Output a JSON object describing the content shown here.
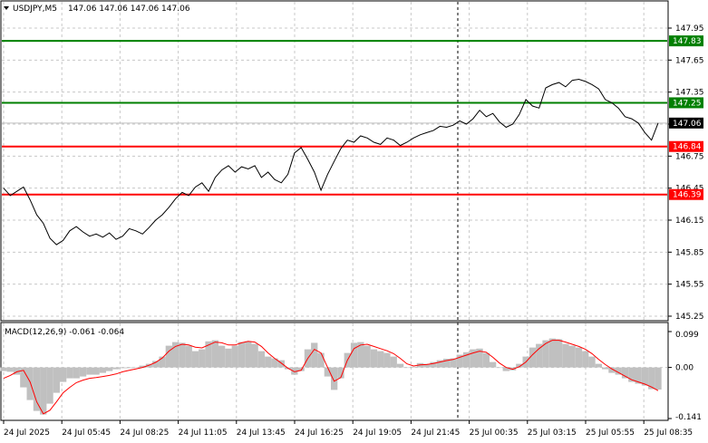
{
  "header": {
    "symbol": "USDJPY,M5",
    "ohlc": "147.06 147.06 147.06 147.06",
    "menu_icon": "triangle-down-icon"
  },
  "macd": {
    "label": "MACD(12,26,9) -0.061 -0.064",
    "ylim": [
      -0.141,
      0.099
    ],
    "ticks": [
      "0.099",
      "0.00",
      "-0.141"
    ],
    "histogram_color": "#c0c0c0",
    "signal_color": "#ff0000"
  },
  "price_axis": {
    "ylim": [
      145.25,
      147.95
    ],
    "ticks": [
      "147.95",
      "147.65",
      "147.35",
      "147.05",
      "146.75",
      "146.45",
      "146.15",
      "145.85",
      "145.55",
      "145.25"
    ]
  },
  "time_axis": {
    "labels": [
      "24 Jul 2025",
      "24 Jul 05:45",
      "24 Jul 08:25",
      "24 Jul 11:05",
      "24 Jul 13:45",
      "24 Jul 16:25",
      "24 Jul 19:05",
      "24 Jul 21:45",
      "25 Jul 00:35",
      "25 Jul 03:15",
      "25 Jul 05:55",
      "25 Jul 08:35"
    ]
  },
  "levels": [
    {
      "name": "resistance-1",
      "value": 147.83,
      "label": "147.83",
      "color": "#008000"
    },
    {
      "name": "resistance-2",
      "value": 147.25,
      "label": "147.25",
      "color": "#008000"
    },
    {
      "name": "support-1",
      "value": 146.84,
      "label": "146.84",
      "color": "#ff0000"
    },
    {
      "name": "support-2",
      "value": 146.39,
      "label": "146.39",
      "color": "#ff0000"
    }
  ],
  "current_price": {
    "value": 147.06,
    "label": "147.06",
    "color": "#000000"
  },
  "chart_data": [
    {
      "type": "line",
      "title": "USDJPY,M5",
      "ylim": [
        145.25,
        147.95
      ],
      "series": [
        {
          "values": [
            146.45,
            146.38,
            146.42,
            146.46,
            146.34,
            146.2,
            146.12,
            145.98,
            145.92,
            145.96,
            146.05,
            146.09,
            146.04,
            146.0,
            146.02,
            145.99,
            146.03,
            145.97,
            146.0,
            146.07,
            146.05,
            146.02,
            146.08,
            146.15,
            146.2,
            146.27,
            146.35,
            146.41,
            146.38,
            146.46,
            146.5,
            146.42,
            146.55,
            146.62,
            146.66,
            146.6,
            146.65,
            146.63,
            146.66,
            146.55,
            146.6,
            146.53,
            146.5,
            146.58,
            146.78,
            146.83,
            146.72,
            146.6,
            146.43,
            146.58,
            146.7,
            146.82,
            146.9,
            146.88,
            146.94,
            146.92,
            146.88,
            146.86,
            146.92,
            146.9,
            146.85,
            146.88,
            146.92,
            146.95,
            146.97,
            146.99,
            147.03,
            147.02,
            147.04,
            147.08,
            147.05,
            147.1,
            147.18,
            147.12,
            147.15,
            147.07,
            147.02,
            147.05,
            147.14,
            147.28,
            147.22,
            147.2,
            147.39,
            147.42,
            147.44,
            147.4,
            147.46,
            147.47,
            147.45,
            147.42,
            147.38,
            147.28,
            147.25,
            147.2,
            147.12,
            147.1,
            147.06,
            146.97,
            146.9,
            147.06
          ]
        }
      ]
    },
    {
      "type": "bar",
      "title": "MACD(12,26,9)",
      "ylim": [
        -0.141,
        0.099
      ],
      "series": [
        {
          "values": [
            -0.01,
            -0.012,
            -0.02,
            -0.055,
            -0.09,
            -0.12,
            -0.13,
            -0.1,
            -0.07,
            -0.04,
            -0.03,
            -0.03,
            -0.025,
            -0.02,
            -0.02,
            -0.015,
            -0.01,
            -0.005,
            -0.002,
            -0.002,
            0.0,
            0.005,
            0.01,
            0.018,
            0.03,
            0.06,
            0.07,
            0.068,
            0.06,
            0.045,
            0.05,
            0.072,
            0.075,
            0.06,
            0.052,
            0.06,
            0.07,
            0.072,
            0.065,
            0.045,
            0.03,
            0.025,
            0.02,
            -0.005,
            -0.02,
            -0.01,
            0.05,
            0.068,
            0.04,
            -0.025,
            -0.062,
            -0.03,
            0.04,
            0.068,
            0.07,
            0.06,
            0.05,
            0.045,
            0.04,
            0.03,
            0.01,
            0.0,
            0.002,
            0.012,
            0.01,
            0.015,
            0.02,
            0.024,
            0.025,
            0.035,
            0.042,
            0.05,
            0.052,
            0.04,
            0.015,
            0.0,
            -0.01,
            -0.008,
            0.01,
            0.03,
            0.055,
            0.065,
            0.075,
            0.08,
            0.078,
            0.065,
            0.06,
            0.055,
            0.045,
            0.03,
            0.01,
            -0.005,
            -0.015,
            -0.02,
            -0.03,
            -0.04,
            -0.045,
            -0.05,
            -0.06,
            -0.061
          ]
        },
        {
          "values": [
            -0.03,
            -0.022,
            -0.012,
            -0.008,
            -0.04,
            -0.095,
            -0.128,
            -0.118,
            -0.095,
            -0.07,
            -0.055,
            -0.042,
            -0.035,
            -0.03,
            -0.028,
            -0.025,
            -0.022,
            -0.018,
            -0.012,
            -0.008,
            -0.004,
            0.0,
            0.006,
            0.014,
            0.026,
            0.045,
            0.058,
            0.064,
            0.062,
            0.056,
            0.054,
            0.062,
            0.07,
            0.068,
            0.062,
            0.062,
            0.068,
            0.072,
            0.07,
            0.058,
            0.04,
            0.025,
            0.012,
            -0.002,
            -0.012,
            -0.008,
            0.025,
            0.05,
            0.04,
            0.0,
            -0.038,
            -0.028,
            0.02,
            0.052,
            0.062,
            0.064,
            0.058,
            0.052,
            0.046,
            0.038,
            0.025,
            0.01,
            0.004,
            0.007,
            0.008,
            0.011,
            0.015,
            0.019,
            0.022,
            0.028,
            0.034,
            0.04,
            0.045,
            0.042,
            0.028,
            0.012,
            0.0,
            -0.005,
            0.002,
            0.015,
            0.035,
            0.052,
            0.066,
            0.075,
            0.075,
            0.07,
            0.064,
            0.058,
            0.05,
            0.038,
            0.022,
            0.008,
            -0.004,
            -0.014,
            -0.024,
            -0.034,
            -0.04,
            -0.046,
            -0.054,
            -0.064
          ]
        }
      ]
    }
  ]
}
